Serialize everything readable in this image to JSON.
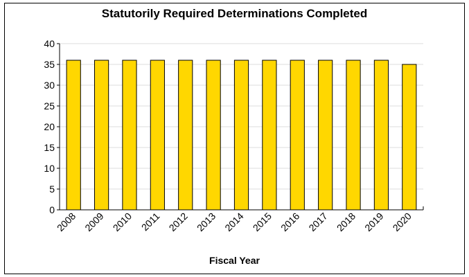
{
  "chart_data": {
    "type": "bar",
    "title": "Statutorily Required Determinations Completed",
    "xlabel": "Fiscal Year",
    "ylabel": "",
    "categories": [
      "2008",
      "2009",
      "2010",
      "2011",
      "2012",
      "2013",
      "2014",
      "2015",
      "2016",
      "2017",
      "2018",
      "2019",
      "2020"
    ],
    "values": [
      36,
      36,
      36,
      36,
      36,
      36,
      36,
      36,
      36,
      36,
      36,
      36,
      35
    ],
    "ylim": [
      0,
      40
    ],
    "yticks": [
      0,
      5,
      10,
      15,
      20,
      25,
      30,
      35,
      40
    ],
    "grid": true,
    "legend": "none",
    "bar_color": "#FFD700",
    "bar_edge_color": "#000000"
  }
}
